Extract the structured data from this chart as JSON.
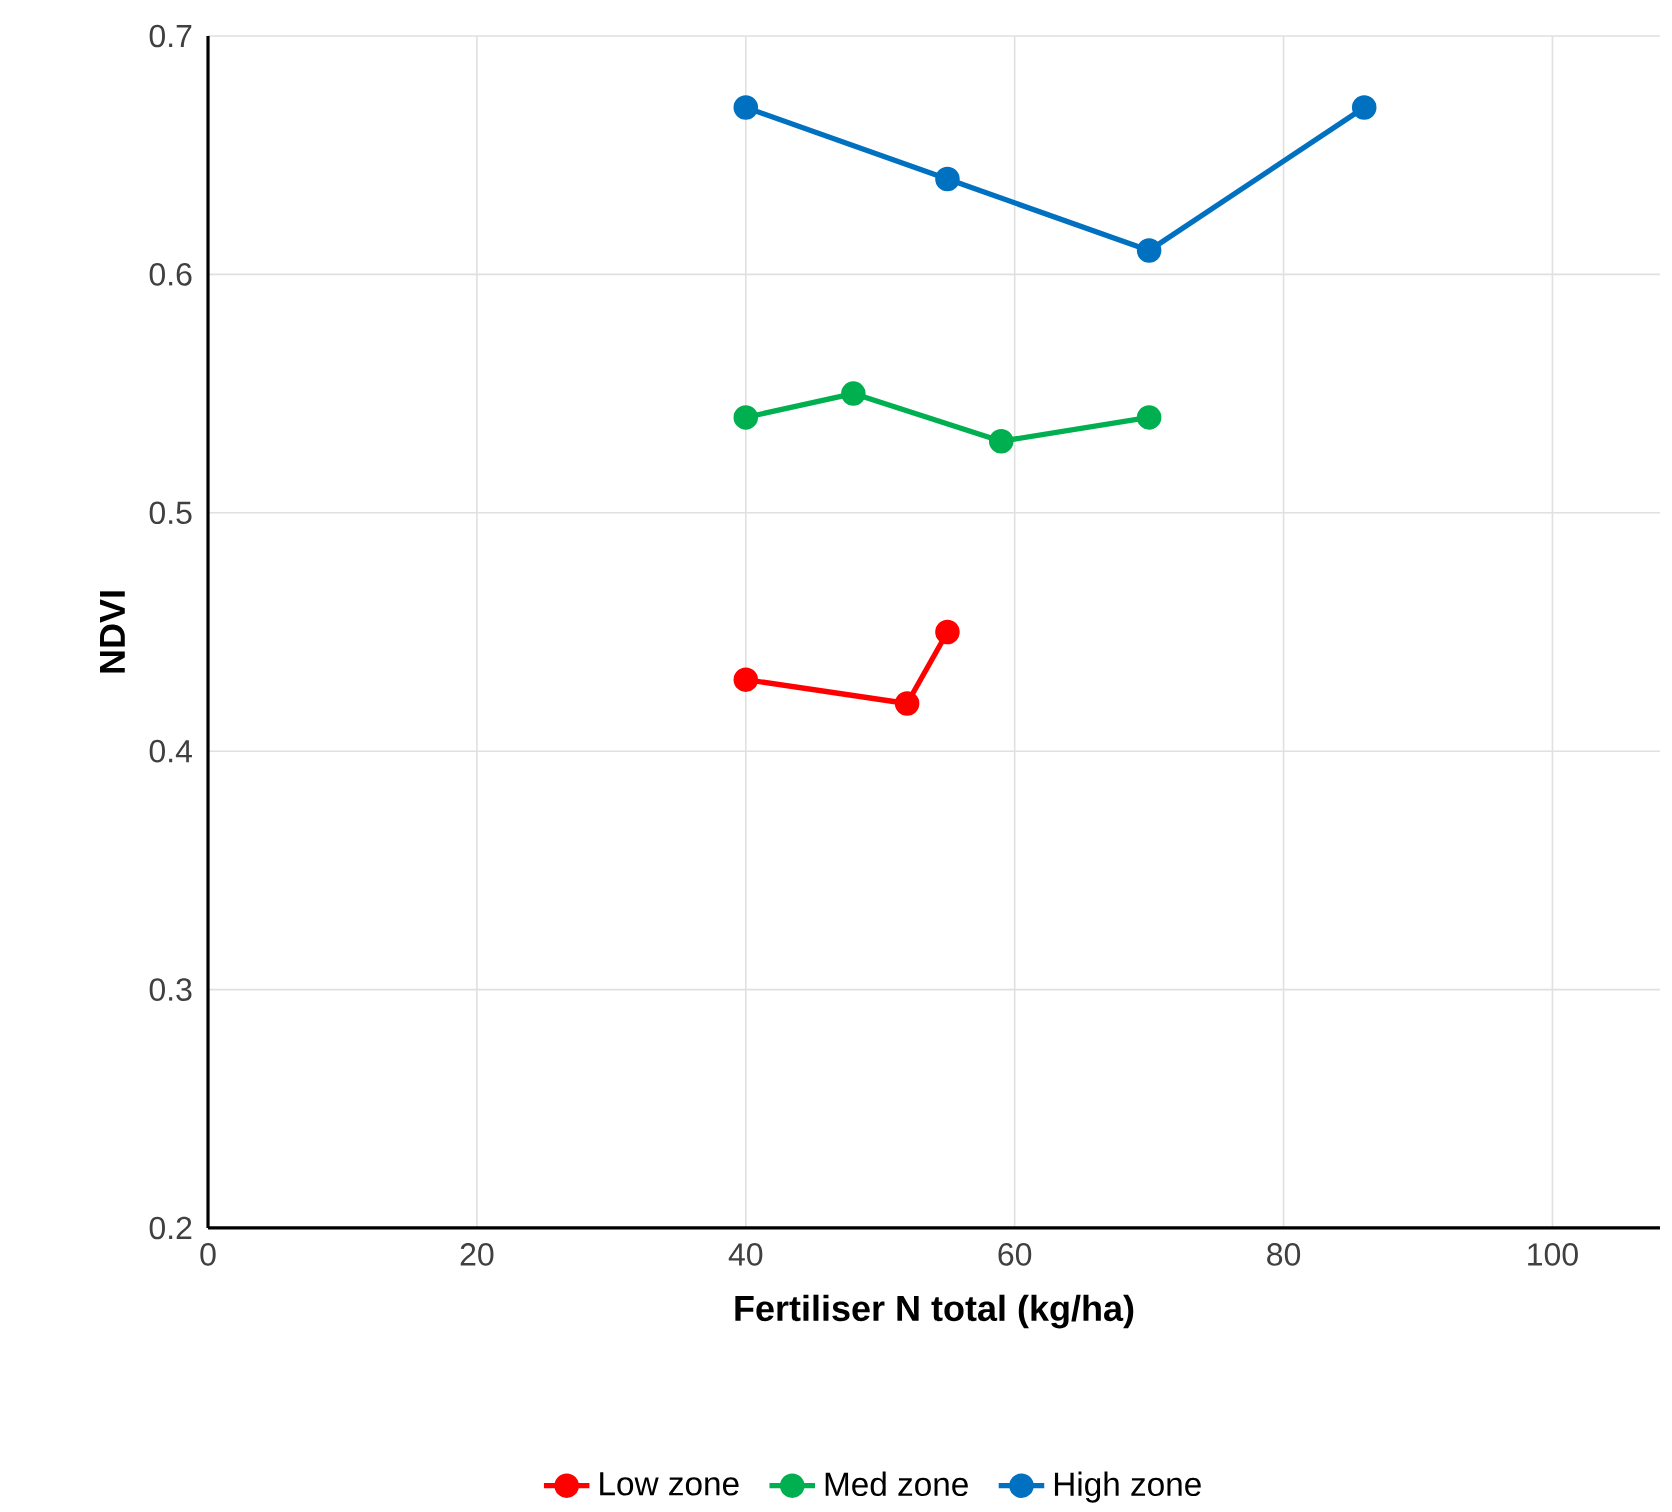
{
  "chart_data": {
    "type": "line",
    "xlabel": "Fertiliser N total (kg/ha)",
    "ylabel": "NDVI",
    "xlim": [
      0,
      108
    ],
    "ylim": [
      0.2,
      0.7
    ],
    "xticks": [
      0,
      20,
      40,
      60,
      80,
      100
    ],
    "yticks": [
      0.2,
      0.3,
      0.4,
      0.5,
      0.6,
      0.7
    ],
    "grid": true,
    "legend": "bottom",
    "marker": "circle",
    "line_style": "solid",
    "series": [
      {
        "name": "Low zone",
        "color": "#ff0000",
        "x": [
          40,
          52,
          55
        ],
        "values": [
          0.43,
          0.42,
          0.45
        ]
      },
      {
        "name": "Med zone",
        "color": "#00b050",
        "x": [
          40,
          48,
          59,
          70
        ],
        "values": [
          0.54,
          0.55,
          0.53,
          0.54
        ]
      },
      {
        "name": "High zone",
        "color": "#0070c0",
        "x": [
          40,
          55,
          70,
          86
        ],
        "values": [
          0.67,
          0.64,
          0.61,
          0.67
        ]
      }
    ]
  }
}
